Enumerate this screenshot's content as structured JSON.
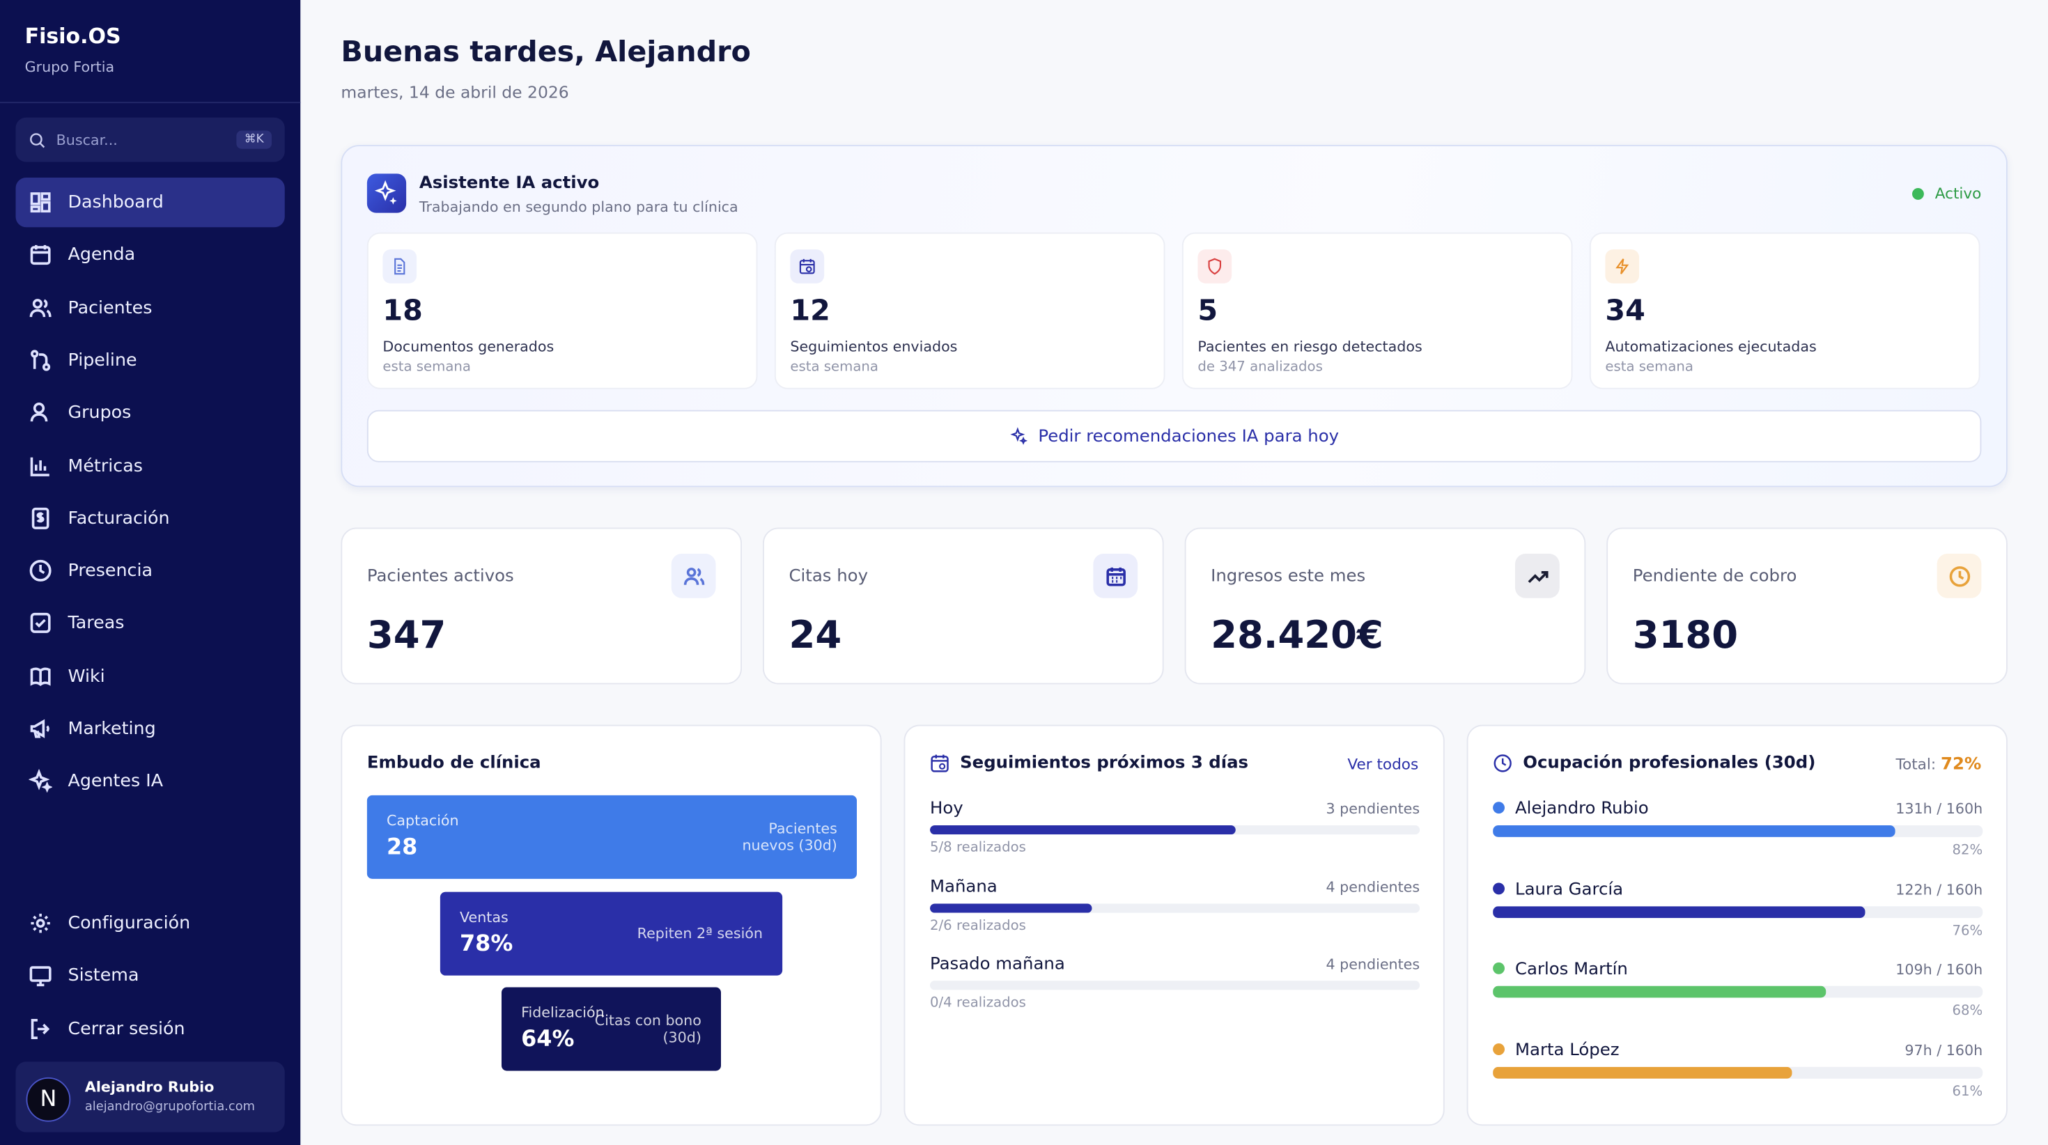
{
  "sidebar": {
    "brand": "Fisio.OS",
    "org": "Grupo Fortia",
    "search": {
      "placeholder": "Buscar...",
      "shortcut": "⌘K"
    },
    "nav": [
      "Dashboard",
      "Agenda",
      "Pacientes",
      "Pipeline",
      "Grupos",
      "Métricas",
      "Facturación",
      "Presencia",
      "Tareas",
      "Wiki",
      "Marketing",
      "Agentes IA"
    ],
    "footer_nav": [
      "Configuración",
      "Sistema",
      "Cerrar sesión"
    ],
    "user": {
      "initial": "N",
      "name": "Alejandro Rubio",
      "email": "alejandro@grupofortia.com"
    }
  },
  "header": {
    "title": "Buenas tardes, Alejandro",
    "date": "martes, 14 de abril de 2026"
  },
  "ai_panel": {
    "title": "Asistente IA activo",
    "subtitle": "Trabajando en segundo plano para tu clínica",
    "status": "Activo",
    "stats": [
      {
        "value": "18",
        "label": "Documentos generados",
        "note": "esta semana"
      },
      {
        "value": "12",
        "label": "Seguimientos enviados",
        "note": "esta semana"
      },
      {
        "value": "5",
        "label": "Pacientes en riesgo detectados",
        "note": "de 347 analizados"
      },
      {
        "value": "34",
        "label": "Automatizaciones ejecutadas",
        "note": "esta semana"
      }
    ],
    "button": "Pedir recomendaciones IA para hoy"
  },
  "kpis": [
    {
      "label": "Pacientes activos",
      "value": "347"
    },
    {
      "label": "Citas hoy",
      "value": "24"
    },
    {
      "label": "Ingresos este mes",
      "value": "28.420€"
    },
    {
      "label": "Pendiente de cobro",
      "value": "3180"
    }
  ],
  "funnel": {
    "title": "Embudo de clínica",
    "stages": [
      {
        "name": "Captación",
        "value": "28",
        "note": "Pacientes nuevos (30d)"
      },
      {
        "name": "Ventas",
        "value": "78%",
        "note": "Repiten 2ª sesión"
      },
      {
        "name": "Fidelización",
        "value": "64%",
        "note": "Citas con bono (30d)"
      }
    ]
  },
  "followups": {
    "title": "Seguimientos próximos 3 días",
    "link": "Ver todos",
    "items": [
      {
        "day": "Hoy",
        "pending": "3 pendientes",
        "done": "5/8 realizados"
      },
      {
        "day": "Mañana",
        "pending": "4 pendientes",
        "done": "2/6 realizados"
      },
      {
        "day": "Pasado mañana",
        "pending": "4 pendientes",
        "done": "0/4 realizados"
      }
    ]
  },
  "occupancy": {
    "title": "Ocupación profesionales (30d)",
    "total_label": "Total:",
    "total": "72%",
    "people": [
      {
        "name": "Alejandro Rubio",
        "hours": "131h / 160h",
        "percent": "82%"
      },
      {
        "name": "Laura García",
        "hours": "122h / 160h",
        "percent": "76%"
      },
      {
        "name": "Carlos Martín",
        "hours": "109h / 160h",
        "percent": "68%"
      },
      {
        "name": "Marta López",
        "hours": "97h / 160h",
        "percent": "61%"
      }
    ]
  }
}
